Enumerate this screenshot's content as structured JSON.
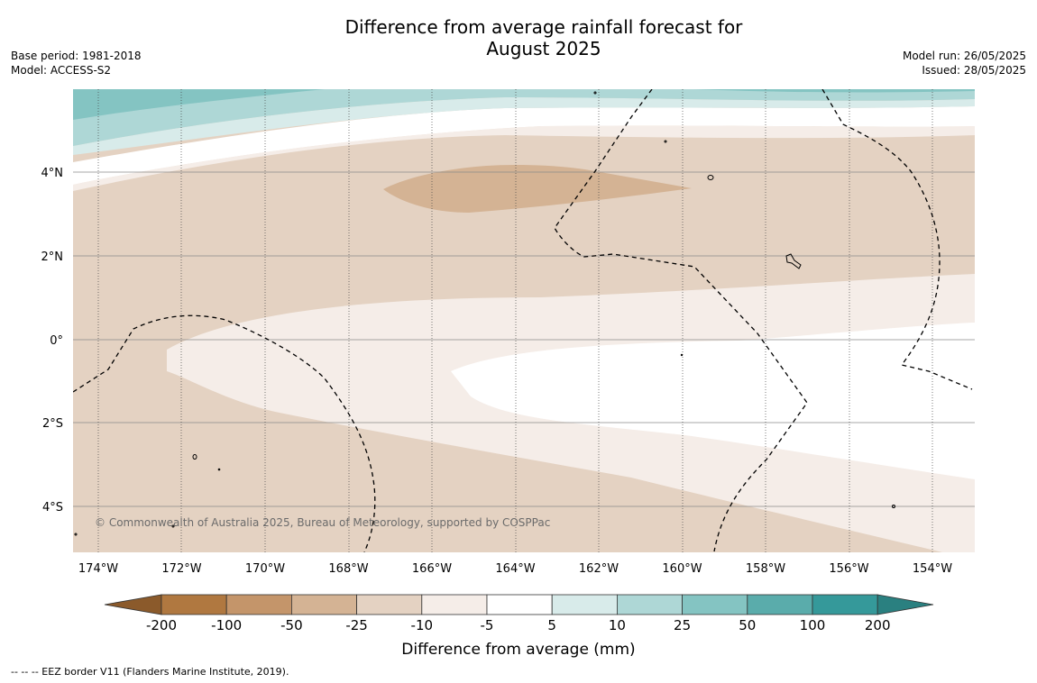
{
  "title_line1": "Difference from average rainfall forecast for",
  "title_line2": "August 2025",
  "meta_left": {
    "base_period": "Base period: 1981-2018",
    "model": "Model: ACCESS-S2"
  },
  "meta_right": {
    "model_run": "Model run: 26/05/2025",
    "issued": "Issued: 28/05/2025"
  },
  "map": {
    "lat_labels": [
      "4°N",
      "2°N",
      "0°",
      "2°S",
      "4°S"
    ],
    "lon_labels": [
      "174°W",
      "172°W",
      "170°W",
      "168°W",
      "166°W",
      "164°W",
      "162°W",
      "160°W",
      "158°W",
      "156°W",
      "154°W"
    ],
    "copyright": "© Commonwealth of Australia 2025, Bureau of Meteorology, supported by COSPPac"
  },
  "colorbar": {
    "ticks": [
      "-200",
      "-100",
      "-50",
      "-25",
      "-10",
      "-5",
      "5",
      "10",
      "25",
      "50",
      "100",
      "200"
    ],
    "colors": [
      "#8b5a2b",
      "#b07840",
      "#c4956a",
      "#d4b394",
      "#e4d2c2",
      "#f5ede8",
      "#ffffff",
      "#d8ebea",
      "#aed7d6",
      "#84c4c2",
      "#5aacab",
      "#35999a",
      "#2a8080"
    ],
    "label": "Difference from average (mm)"
  },
  "legend_footer": "--  --  -- EEZ border V11 (Flanders Marine Institute, 2019)."
}
